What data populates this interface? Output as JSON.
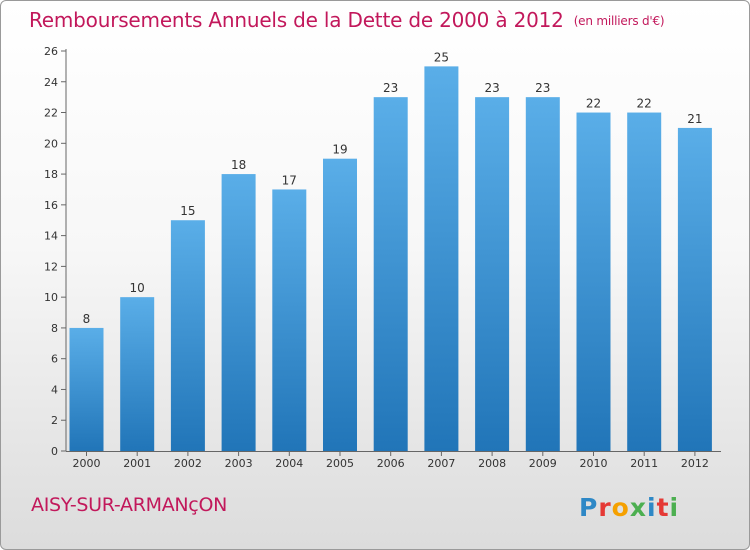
{
  "title": "Remboursements Annuels de la Dette de 2000 à 2012",
  "unit": "(en milliers d'€)",
  "commune": "AISY-SUR-ARMANçON",
  "logo_text": "Proxiti",
  "colors": {
    "title": "#c2185b",
    "bar_top": "#5aaee8",
    "bar_bottom": "#2175b8",
    "logo_letters": [
      "#2e88c6",
      "#e53935",
      "#f5a000",
      "#4caf50",
      "#2e88c6",
      "#e53935",
      "#4caf50"
    ]
  },
  "chart_data": {
    "type": "bar",
    "title": "Remboursements Annuels de la Dette de 2000 à 2012",
    "ylabel": "",
    "xlabel": "",
    "categories": [
      "2000",
      "2001",
      "2002",
      "2003",
      "2004",
      "2005",
      "2006",
      "2007",
      "2008",
      "2009",
      "2010",
      "2011",
      "2012"
    ],
    "values": [
      8,
      10,
      15,
      18,
      17,
      19,
      23,
      25,
      23,
      23,
      22,
      22,
      21
    ],
    "ylim": [
      0,
      26
    ],
    "yticks": [
      0,
      2,
      4,
      6,
      8,
      10,
      12,
      14,
      16,
      18,
      20,
      22,
      24,
      26
    ],
    "grid": false
  }
}
